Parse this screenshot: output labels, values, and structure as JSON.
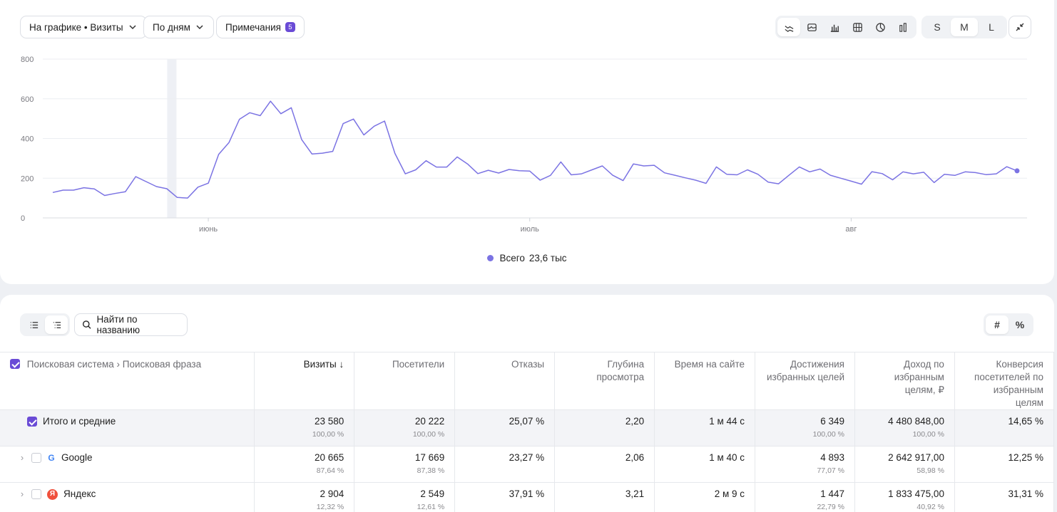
{
  "toolbar": {
    "metric_select": "На графике • Визиты",
    "period_select": "По дням",
    "notes_label": "Примечания",
    "notes_count": "5",
    "chart_types": [
      "line-chart-icon",
      "stacked-area-icon",
      "bar-chart-icon",
      "table-chart-icon",
      "pie-chart-icon",
      "column-chart-icon"
    ],
    "sizes": [
      "S",
      "M",
      "L"
    ],
    "active_size": "M"
  },
  "chart_data": {
    "type": "line",
    "title": "",
    "xlabel": "",
    "ylabel": "",
    "ylim": [
      0,
      800
    ],
    "yticks": [
      "0",
      "200",
      "400",
      "600",
      "800"
    ],
    "xticks": [
      "июнь",
      "июль",
      "авг"
    ],
    "grid": true,
    "color": "#7b73e3",
    "series": [
      {
        "name": "Всего",
        "values": [
          128,
          140,
          140,
          152,
          146,
          113,
          123,
          132,
          208,
          183,
          158,
          147,
          103,
          100,
          155,
          175,
          320,
          380,
          497,
          530,
          515,
          588,
          525,
          555,
          395,
          322,
          326,
          335,
          475,
          498,
          418,
          462,
          488,
          325,
          222,
          242,
          288,
          256,
          256,
          307,
          272,
          223,
          240,
          226,
          244,
          238,
          236,
          190,
          214,
          282,
          217,
          222,
          242,
          262,
          215,
          188,
          272,
          262,
          265,
          227,
          215,
          202,
          190,
          174,
          257,
          220,
          217,
          242,
          220,
          180,
          172,
          215,
          257,
          232,
          246,
          215,
          200,
          185,
          170,
          233,
          223,
          192,
          232,
          222,
          230,
          178,
          220,
          214,
          232,
          228,
          218,
          222,
          258,
          237
        ]
      }
    ],
    "highlight_band_index": 11,
    "xtick_indices": [
      15,
      46,
      77
    ]
  },
  "legend": {
    "name": "Всего",
    "value": "23,6 тыс"
  },
  "table_controls": {
    "search_placeholder": "Найти по названию",
    "mode_abs": "#",
    "mode_pct": "%"
  },
  "table": {
    "header_dimension": "Поисковая система › Поисковая фраза",
    "columns": [
      "Визиты ↓",
      "Посетители",
      "Отказы",
      "Глубина просмотра",
      "Время на сайте",
      "Достижения избранных целей",
      "Доход по избранным целям, ₽",
      "Конверсия посетителей по избранным целям"
    ],
    "rows": [
      {
        "name": "Итого и средние",
        "cells": [
          {
            "v": "23 580",
            "s": "100,00 %"
          },
          {
            "v": "20 222",
            "s": "100,00 %"
          },
          {
            "v": "25,07 %",
            "s": ""
          },
          {
            "v": "2,20",
            "s": ""
          },
          {
            "v": "1 м 44 с",
            "s": ""
          },
          {
            "v": "6 349",
            "s": "100,00 %"
          },
          {
            "v": "4 480 848,00",
            "s": "100,00 %"
          },
          {
            "v": "14,65 %",
            "s": ""
          }
        ]
      },
      {
        "name": "Google",
        "cells": [
          {
            "v": "20 665",
            "s": "87,64 %"
          },
          {
            "v": "17 669",
            "s": "87,38 %"
          },
          {
            "v": "23,27 %",
            "s": ""
          },
          {
            "v": "2,06",
            "s": ""
          },
          {
            "v": "1 м 40 с",
            "s": ""
          },
          {
            "v": "4 893",
            "s": "77,07 %"
          },
          {
            "v": "2 642 917,00",
            "s": "58,98 %"
          },
          {
            "v": "12,25 %",
            "s": ""
          }
        ]
      },
      {
        "name": "Яндекс",
        "cells": [
          {
            "v": "2 904",
            "s": "12,32 %"
          },
          {
            "v": "2 549",
            "s": "12,61 %"
          },
          {
            "v": "37,91 %",
            "s": ""
          },
          {
            "v": "3,21",
            "s": ""
          },
          {
            "v": "2 м 9 с",
            "s": ""
          },
          {
            "v": "1 447",
            "s": "22,79 %"
          },
          {
            "v": "1 833 475,00",
            "s": "40,92 %"
          },
          {
            "v": "31,31 %",
            "s": ""
          }
        ]
      }
    ]
  }
}
